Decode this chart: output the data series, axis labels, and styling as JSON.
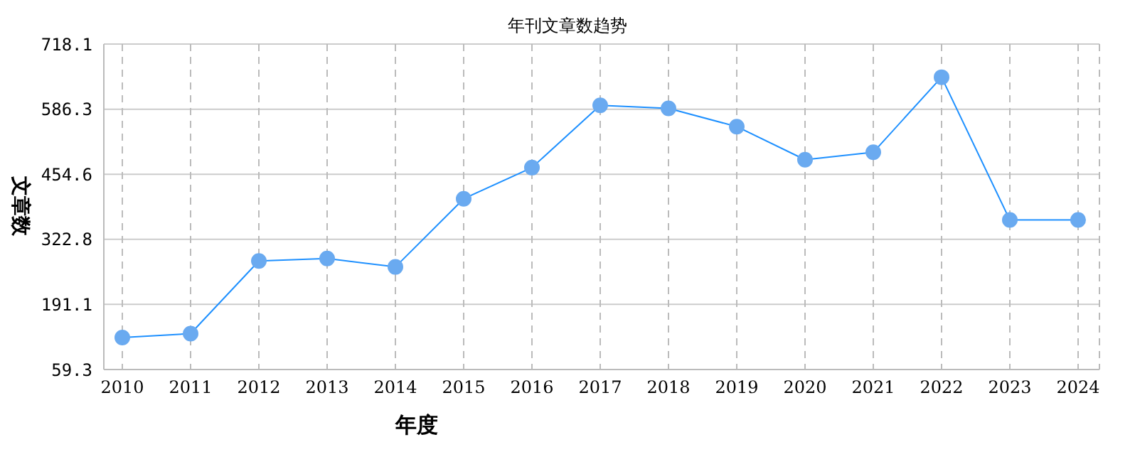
{
  "chart_data": {
    "type": "line",
    "title": "年刊文章数趋势",
    "xlabel": "年度",
    "ylabel": "文章数",
    "categories": [
      "2010",
      "2011",
      "2012",
      "2013",
      "2014",
      "2015",
      "2016",
      "2017",
      "2018",
      "2019",
      "2020",
      "2021",
      "2022",
      "2023",
      "2024"
    ],
    "series": [
      {
        "color": "#1e90ff",
        "values": [
          124,
          132,
          279,
          284,
          267,
          405,
          468,
          594,
          588,
          551,
          484,
          499,
          651,
          362,
          362
        ]
      }
    ],
    "ylim": [
      59.3,
      718.1
    ],
    "yticks": [
      59.3,
      191.1,
      322.8,
      454.6,
      586.3,
      718.1
    ],
    "grid": true,
    "marker": "circle",
    "line_style": "solid"
  }
}
